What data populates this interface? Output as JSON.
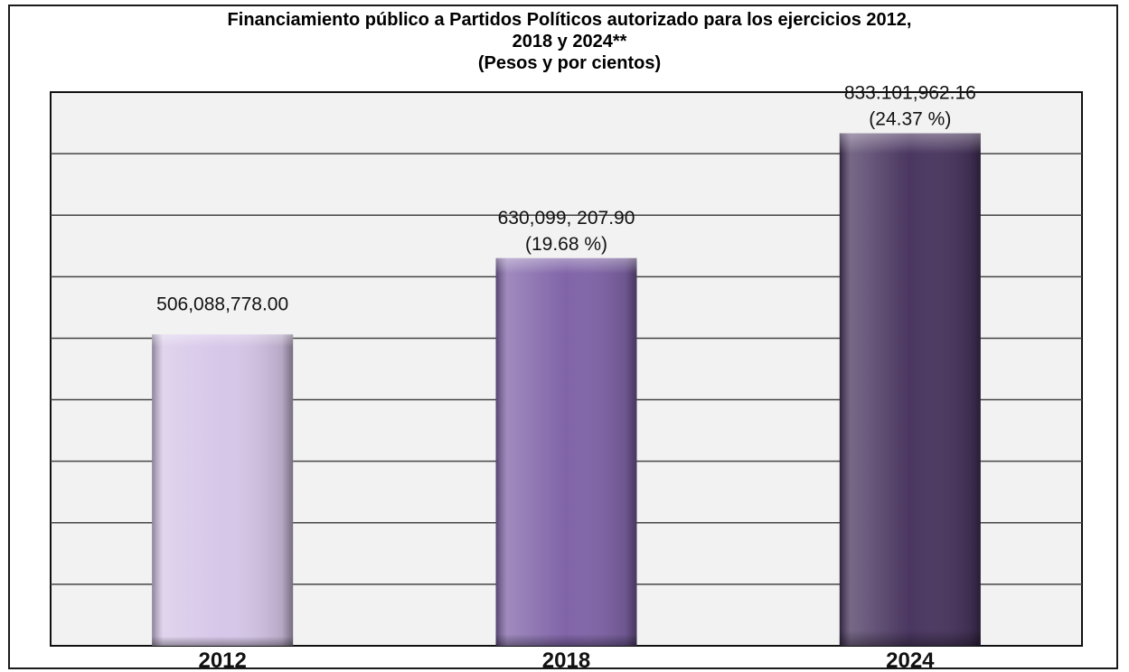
{
  "chart_data": {
    "type": "bar",
    "title_lines": [
      "Financiamiento público a Partidos Políticos autorizado para los ejercicios 2012,",
      "2018 y 2024**",
      "(Pesos y por cientos)"
    ],
    "categories": [
      "2012",
      "2018",
      "2024"
    ],
    "values": [
      506088778.0,
      630099207.9,
      833101962.16
    ],
    "value_labels": [
      "506,088,778.00",
      "630,099, 207.90",
      "833.101,962.16"
    ],
    "percent_labels": [
      "",
      "(19.68 %)",
      "(24.37 %)"
    ],
    "colors": [
      "#d6c6e8",
      "#8064a8",
      "#4a3660"
    ],
    "ylim": [
      0,
      900000000
    ],
    "grid": true,
    "legend": "none",
    "xlabel": "",
    "ylabel": ""
  }
}
